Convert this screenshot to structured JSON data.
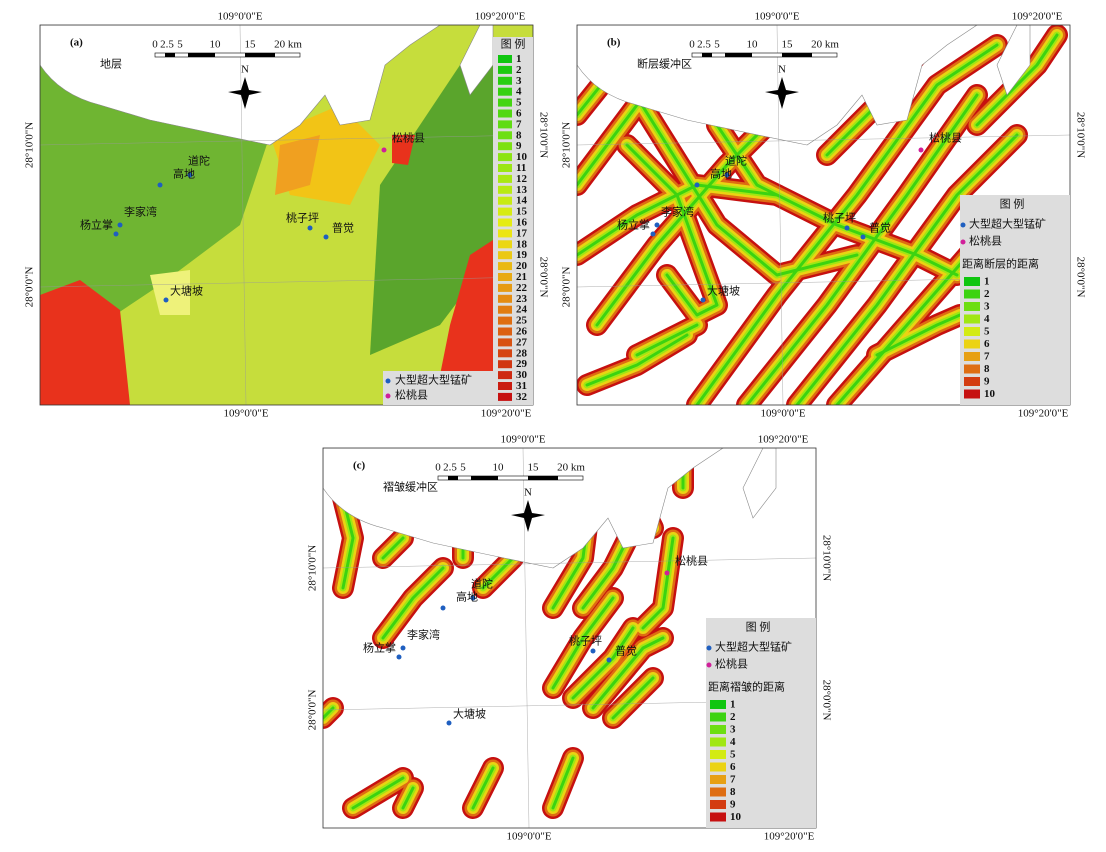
{
  "panels": [
    {
      "label": "(a)",
      "title": "地层",
      "scale_labels": [
        "0",
        "2.5",
        "5",
        "10",
        "15",
        "20 km"
      ],
      "north": "N",
      "lon_labels": [
        "109°0'0\"E",
        "109°20'0\"E"
      ],
      "lat_labels": [
        "28°10'0\"N",
        "28°0'0\"N"
      ],
      "places": [
        "松桃县",
        "道陀",
        "高地",
        "李家湾",
        "杨立掌",
        "桃子坪",
        "普觉",
        "大塘坡"
      ],
      "legend": {
        "title": "图 例",
        "symbols": [
          "大型超大型锰矿",
          "松桃县"
        ],
        "classes": [
          "1",
          "2",
          "3",
          "4",
          "5",
          "6",
          "7",
          "8",
          "9",
          "10",
          "11",
          "12",
          "13",
          "14",
          "15",
          "16",
          "17",
          "18",
          "19",
          "20",
          "21",
          "22",
          "23",
          "24",
          "25",
          "26",
          "27",
          "28",
          "29",
          "30",
          "31",
          "32"
        ]
      }
    },
    {
      "label": "(b)",
      "title": "断层缓冲区",
      "scale_labels": [
        "0",
        "2.5",
        "5",
        "10",
        "15",
        "20 km"
      ],
      "north": "N",
      "lon_labels": [
        "109°0'0\"E",
        "109°20'0\"E"
      ],
      "lat_labels": [
        "28°10'0\"N",
        "28°0'0\"N"
      ],
      "places": [
        "松桃县",
        "道陀",
        "高地",
        "李家湾",
        "杨立掌",
        "桃子坪",
        "普觉",
        "大塘坡"
      ],
      "legend": {
        "title": "图 例",
        "symbols": [
          "大型超大型锰矿",
          "松桃县"
        ],
        "heading": "距离断层的距离",
        "classes": [
          "1",
          "2",
          "3",
          "4",
          "5",
          "6",
          "7",
          "8",
          "9",
          "10"
        ]
      }
    },
    {
      "label": "(c)",
      "title": "褶皱缓冲区",
      "scale_labels": [
        "0",
        "2.5",
        "5",
        "10",
        "15",
        "20 km"
      ],
      "north": "N",
      "lon_labels": [
        "109°0'0\"E",
        "109°20'0\"E"
      ],
      "lat_labels": [
        "28°10'0\"N",
        "28°0'0\"N"
      ],
      "places": [
        "松桃县",
        "道陀",
        "高地",
        "李家湾",
        "杨立掌",
        "桃子坪",
        "普觉",
        "大塘坡"
      ],
      "legend": {
        "title": "图 例",
        "symbols": [
          "大型超大型锰矿",
          "松桃县"
        ],
        "heading": "距离褶皱的距离",
        "classes": [
          "1",
          "2",
          "3",
          "4",
          "5",
          "6",
          "7",
          "8",
          "9",
          "10"
        ]
      }
    }
  ]
}
